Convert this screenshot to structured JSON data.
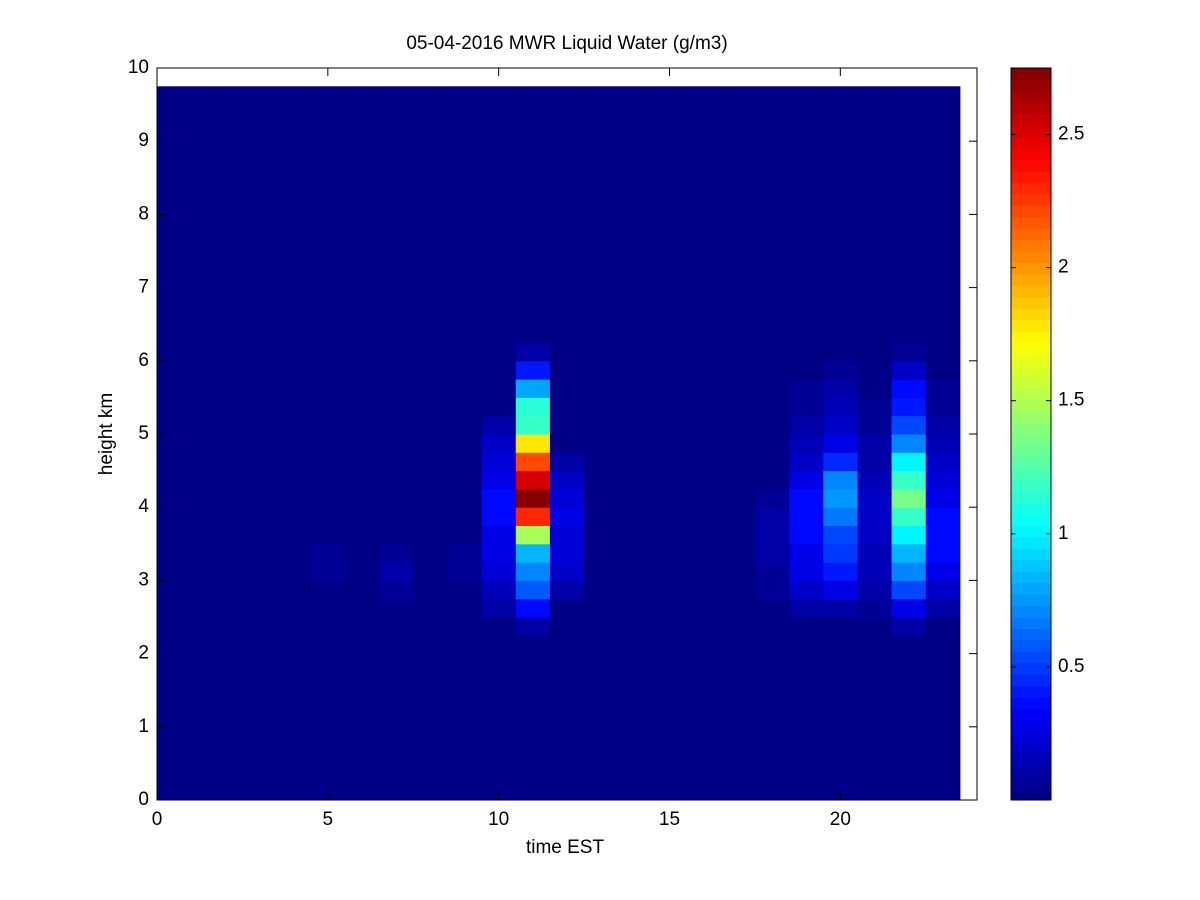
{
  "chart_data": {
    "type": "heatmap",
    "title": "05-04-2016 MWR Liquid Water (g/m3)",
    "x_label": "time EST",
    "y_label": "height km",
    "xlim": [
      0,
      24
    ],
    "xticks": [
      0,
      5,
      10,
      15,
      20
    ],
    "ylim": [
      0,
      10
    ],
    "yticks": [
      0,
      1,
      2,
      3,
      4,
      5,
      6,
      7,
      8,
      9,
      10
    ],
    "colormap": "jet",
    "clim": [
      0,
      2.75
    ],
    "cticks": [
      0.5,
      1,
      1.5,
      2,
      2.5
    ],
    "x_edges": [
      0,
      0.5,
      1.5,
      2.5,
      3.5,
      4.5,
      5.5,
      6.5,
      7.5,
      8.5,
      9.5,
      10.5,
      11.5,
      12.5,
      13.5,
      14.5,
      15.5,
      16.5,
      17.5,
      18.5,
      19.5,
      20.5,
      21.5,
      22.5,
      23.5
    ],
    "y_edges": [
      0,
      2.25,
      2.5,
      2.75,
      3,
      3.25,
      3.5,
      3.75,
      4,
      4.25,
      4.5,
      4.75,
      5,
      5.25,
      5.5,
      5.75,
      6,
      6.25,
      9.75
    ],
    "z": [
      [
        0,
        0,
        0,
        0,
        0,
        0,
        0,
        0,
        0,
        0,
        0,
        0,
        0,
        0,
        0,
        0,
        0,
        0,
        0,
        0,
        0,
        0,
        0,
        0
      ],
      [
        0,
        0,
        0,
        0,
        0,
        0,
        0,
        0,
        0,
        0,
        0,
        0.1,
        0,
        0,
        0,
        0,
        0,
        0,
        0,
        0,
        0,
        0,
        0.1,
        0
      ],
      [
        0,
        0,
        0,
        0,
        0,
        0,
        0,
        0,
        0,
        0,
        0.1,
        0.35,
        0,
        0,
        0,
        0,
        0,
        0,
        0,
        0.1,
        0.1,
        0.05,
        0.3,
        0.1
      ],
      [
        0,
        0,
        0,
        0,
        0,
        0,
        0,
        0.08,
        0,
        0,
        0.15,
        0.6,
        0.1,
        0,
        0,
        0,
        0,
        0,
        0.05,
        0.2,
        0.3,
        0.1,
        0.55,
        0.2
      ],
      [
        0,
        0,
        0,
        0,
        0,
        0.08,
        0,
        0.1,
        0,
        0.08,
        0.25,
        0.7,
        0.2,
        0,
        0,
        0,
        0,
        0,
        0.08,
        0.3,
        0.4,
        0.15,
        0.7,
        0.3
      ],
      [
        0,
        0,
        0,
        0,
        0,
        0.08,
        0,
        0.08,
        0,
        0.08,
        0.3,
        0.85,
        0.25,
        0,
        0,
        0,
        0,
        0,
        0.1,
        0.3,
        0.5,
        0.15,
        0.85,
        0.35
      ],
      [
        0,
        0,
        0,
        0,
        0,
        0,
        0,
        0,
        0,
        0,
        0.3,
        1.5,
        0.25,
        0,
        0,
        0,
        0,
        0,
        0.1,
        0.35,
        0.55,
        0.2,
        1.0,
        0.35
      ],
      [
        0,
        0,
        0,
        0,
        0,
        0,
        0,
        0,
        0,
        0,
        0.35,
        2.3,
        0.3,
        0,
        0,
        0,
        0,
        0,
        0.1,
        0.35,
        0.65,
        0.2,
        1.2,
        0.35
      ],
      [
        0,
        0,
        0,
        0,
        0,
        0,
        0,
        0,
        0,
        0,
        0.35,
        2.75,
        0.25,
        0,
        0,
        0,
        0,
        0,
        0.08,
        0.35,
        0.75,
        0.2,
        1.35,
        0.3
      ],
      [
        0,
        0,
        0,
        0,
        0,
        0,
        0,
        0,
        0,
        0,
        0.3,
        2.5,
        0.2,
        0,
        0,
        0,
        0,
        0,
        0,
        0.3,
        0.7,
        0.15,
        1.2,
        0.25
      ],
      [
        0,
        0,
        0,
        0,
        0,
        0,
        0,
        0,
        0,
        0,
        0.25,
        2.2,
        0.1,
        0,
        0,
        0,
        0,
        0,
        0,
        0.2,
        0.45,
        0.1,
        1.0,
        0.2
      ],
      [
        0,
        0,
        0,
        0,
        0,
        0,
        0,
        0,
        0,
        0,
        0.2,
        1.8,
        0,
        0,
        0,
        0,
        0,
        0,
        0,
        0.15,
        0.3,
        0.1,
        0.7,
        0.15
      ],
      [
        0,
        0,
        0,
        0,
        0,
        0,
        0,
        0,
        0,
        0,
        0.1,
        1.2,
        0,
        0,
        0,
        0,
        0,
        0,
        0,
        0.1,
        0.2,
        0.08,
        0.55,
        0.1
      ],
      [
        0,
        0,
        0,
        0,
        0,
        0,
        0,
        0,
        0,
        0,
        0,
        1.15,
        0,
        0,
        0,
        0,
        0,
        0,
        0,
        0.08,
        0.15,
        0.05,
        0.4,
        0.08
      ],
      [
        0,
        0,
        0,
        0,
        0,
        0,
        0,
        0,
        0,
        0,
        0,
        0.8,
        0,
        0,
        0,
        0,
        0,
        0,
        0,
        0.05,
        0.1,
        0,
        0.35,
        0.05
      ],
      [
        0,
        0,
        0,
        0,
        0,
        0,
        0,
        0,
        0,
        0,
        0,
        0.4,
        0,
        0,
        0,
        0,
        0,
        0,
        0,
        0,
        0.05,
        0,
        0.2,
        0
      ],
      [
        0,
        0,
        0,
        0,
        0,
        0,
        0,
        0,
        0,
        0,
        0,
        0.1,
        0,
        0,
        0,
        0,
        0,
        0,
        0,
        0,
        0,
        0,
        0.08,
        0
      ],
      [
        0,
        0,
        0,
        0,
        0,
        0,
        0,
        0,
        0,
        0,
        0,
        0,
        0,
        0,
        0,
        0,
        0,
        0,
        0,
        0,
        0,
        0,
        0,
        0
      ]
    ]
  }
}
